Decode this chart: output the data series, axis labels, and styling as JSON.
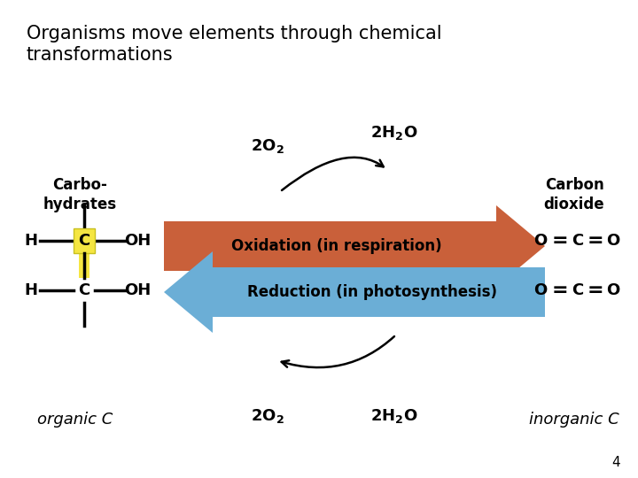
{
  "title_line1": "Organisms move elements through chemical",
  "title_line2": "transformations",
  "title_fontsize": 15,
  "background_color": "#ffffff",
  "oxidation_label": "Oxidation (in respiration)",
  "reduction_label": "Reduction (in photosynthesis)",
  "ox_color_left": "#f5c8b8",
  "ox_color_right": "#c9603a",
  "re_color_left": "#6baed6",
  "re_color_right": "#d4e8f5",
  "carbo_label": "Carbo-\nhydrates",
  "carbon_dioxide_label": "Carbon\ndioxide",
  "organic_c_label": "organic C",
  "inorganic_c_label": "inorganic C",
  "page_number": "4",
  "yellow_color": "#f5e642",
  "yellow_border": "#c8c020"
}
